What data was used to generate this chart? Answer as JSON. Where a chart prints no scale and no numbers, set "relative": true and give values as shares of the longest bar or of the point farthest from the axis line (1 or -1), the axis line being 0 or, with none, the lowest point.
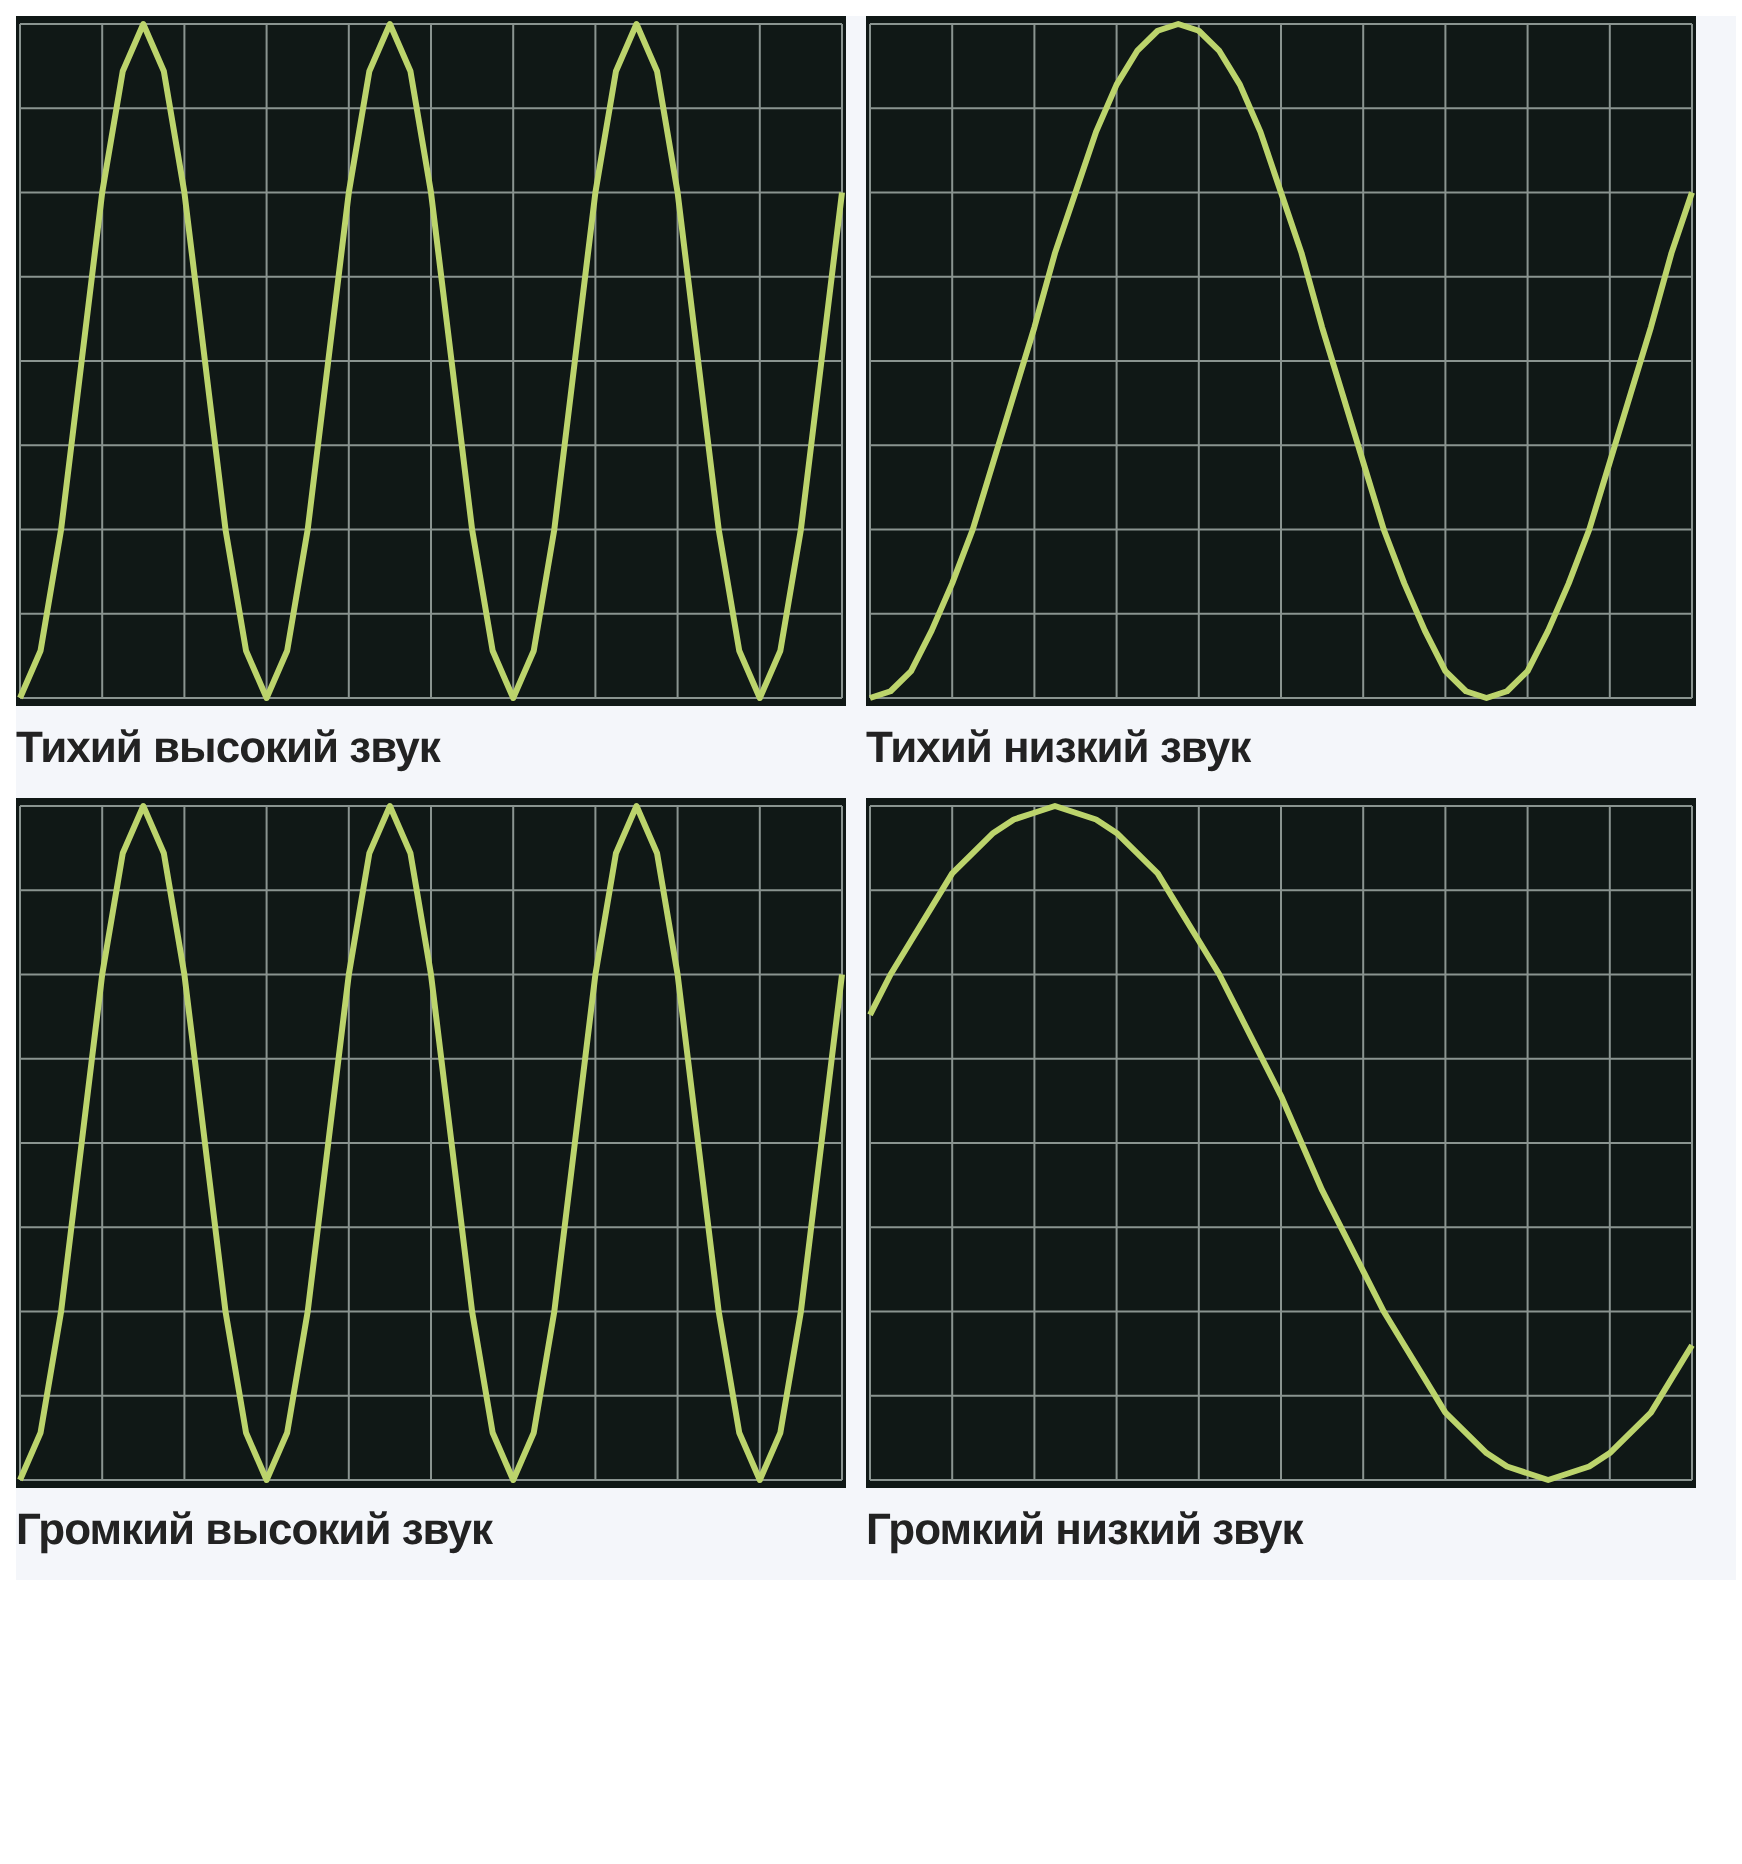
{
  "chart_data": [
    {
      "type": "line",
      "title": "Тихий высокий звук",
      "relative": true,
      "grid": true,
      "categories": [
        null,
        null,
        null,
        null,
        null,
        null,
        null,
        null,
        null,
        null,
        null,
        null,
        null,
        null,
        null,
        null,
        null,
        null,
        null,
        null,
        null,
        null,
        null,
        null,
        null,
        null,
        null,
        null,
        null,
        null,
        null,
        null,
        null,
        null,
        null,
        null,
        null,
        null,
        null,
        null,
        null
      ],
      "series": [
        {
          "color": "#bcd46c",
          "values": [
            0,
            0.07,
            0.25,
            0.5,
            0.75,
            0.93,
            1,
            0.93,
            0.75,
            0.5,
            0.25,
            0.07,
            0,
            0.07,
            0.25,
            0.5,
            0.75,
            0.93,
            1,
            0.93,
            0.75,
            0.5,
            0.25,
            0.07,
            0,
            0.07,
            0.25,
            0.5,
            0.75,
            0.93,
            1,
            0.93,
            0.75,
            0.5,
            0.25,
            0.07,
            0,
            0.07,
            0.25,
            0.5,
            0.75
          ]
        }
      ]
    },
    {
      "type": "line",
      "title": "Тихий низкий звук",
      "relative": true,
      "grid": true,
      "categories": [
        null,
        null,
        null,
        null,
        null,
        null,
        null,
        null,
        null,
        null,
        null,
        null,
        null,
        null,
        null,
        null,
        null,
        null,
        null,
        null,
        null,
        null,
        null,
        null,
        null,
        null,
        null,
        null,
        null,
        null,
        null,
        null,
        null,
        null,
        null,
        null,
        null,
        null,
        null,
        null,
        null
      ],
      "series": [
        {
          "color": "#bcd46c",
          "values": [
            0,
            0.01,
            0.04,
            0.1,
            0.17,
            0.25,
            0.35,
            0.45,
            0.55,
            0.66,
            0.75,
            0.84,
            0.91,
            0.96,
            0.99,
            1,
            0.99,
            0.96,
            0.91,
            0.84,
            0.75,
            0.66,
            0.55,
            0.45,
            0.35,
            0.25,
            0.17,
            0.1,
            0.04,
            0.01,
            0,
            0.01,
            0.04,
            0.1,
            0.17,
            0.25,
            0.35,
            0.45,
            0.55,
            0.66,
            0.75
          ]
        }
      ]
    },
    {
      "type": "line",
      "title": "Громкий высокий звук",
      "relative": true,
      "grid": true,
      "categories": [
        null,
        null,
        null,
        null,
        null,
        null,
        null,
        null,
        null,
        null,
        null,
        null,
        null,
        null,
        null,
        null,
        null,
        null,
        null,
        null,
        null,
        null,
        null,
        null,
        null,
        null,
        null,
        null,
        null,
        null,
        null,
        null,
        null,
        null,
        null,
        null,
        null,
        null,
        null,
        null,
        null
      ],
      "series": [
        {
          "color": "#bcd46c",
          "values": [
            0,
            0.07,
            0.25,
            0.5,
            0.75,
            0.93,
            1,
            0.93,
            0.75,
            0.5,
            0.25,
            0.07,
            0,
            0.07,
            0.25,
            0.5,
            0.75,
            0.93,
            1,
            0.93,
            0.75,
            0.5,
            0.25,
            0.07,
            0,
            0.07,
            0.25,
            0.5,
            0.75,
            0.93,
            1,
            0.93,
            0.75,
            0.5,
            0.25,
            0.07,
            0,
            0.07,
            0.25,
            0.5,
            0.75
          ]
        }
      ]
    },
    {
      "type": "line",
      "title": "Громкий низкий звук",
      "relative": true,
      "grid": true,
      "categories": [
        null,
        null,
        null,
        null,
        null,
        null,
        null,
        null,
        null,
        null,
        null,
        null,
        null,
        null,
        null,
        null,
        null,
        null,
        null,
        null,
        null,
        null,
        null,
        null,
        null,
        null,
        null,
        null,
        null,
        null,
        null,
        null,
        null,
        null,
        null,
        null,
        null,
        null,
        null,
        null,
        null
      ],
      "series": [
        {
          "color": "#bcd46c",
          "values": [
            0.69,
            0.75,
            0.8,
            0.85,
            0.9,
            0.93,
            0.96,
            0.98,
            0.99,
            1,
            0.99,
            0.98,
            0.96,
            0.93,
            0.9,
            0.85,
            0.8,
            0.75,
            0.69,
            0.63,
            0.57,
            0.5,
            0.43,
            0.37,
            0.31,
            0.25,
            0.2,
            0.15,
            0.1,
            0.07,
            0.04,
            0.02,
            0.01,
            0,
            0.01,
            0.02,
            0.04,
            0.07,
            0.1,
            0.15,
            0.2
          ]
        }
      ]
    }
  ]
}
